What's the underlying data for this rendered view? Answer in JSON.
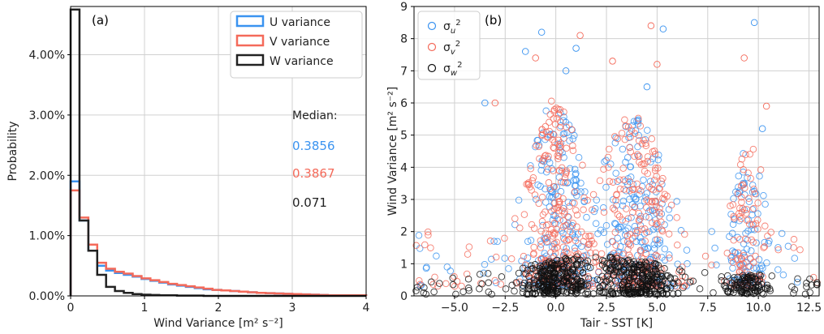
{
  "chart_data": [
    {
      "type": "step-histogram",
      "panel_label": "(a)",
      "xlabel": "Wind Variance [m² s⁻²]",
      "ylabel": "Probability",
      "xlim": [
        0,
        4
      ],
      "ylim": [
        0,
        4.8
      ],
      "x_ticks": [
        "0",
        "1",
        "2",
        "3",
        "4"
      ],
      "y_ticks": [
        "0.00%",
        "1.00%",
        "2.00%",
        "3.00%",
        "4.00%"
      ],
      "grid": true,
      "legend_position": "top-right",
      "bin_edges": [
        0,
        0.12,
        0.24,
        0.36,
        0.48,
        0.6,
        0.72,
        0.84,
        0.96,
        1.08,
        1.2,
        1.32,
        1.44,
        1.56,
        1.68,
        1.8,
        1.92,
        2.04,
        2.16,
        2.28,
        2.4,
        2.52,
        2.64,
        2.76,
        2.88,
        3.0,
        3.12,
        3.24,
        3.36,
        3.48,
        3.6,
        4.0
      ],
      "series": [
        {
          "name": "U variance",
          "color": "#3a93f0",
          "values": [
            1.9,
            1.25,
            0.75,
            0.5,
            0.42,
            0.38,
            0.35,
            0.32,
            0.28,
            0.25,
            0.22,
            0.19,
            0.17,
            0.15,
            0.13,
            0.11,
            0.1,
            0.09,
            0.08,
            0.07,
            0.06,
            0.05,
            0.045,
            0.04,
            0.035,
            0.03,
            0.025,
            0.02,
            0.015,
            0.01,
            0.01
          ]
        },
        {
          "name": "V variance",
          "color": "#f46a5a",
          "values": [
            1.75,
            1.3,
            0.85,
            0.55,
            0.45,
            0.4,
            0.37,
            0.33,
            0.29,
            0.26,
            0.23,
            0.2,
            0.18,
            0.16,
            0.14,
            0.12,
            0.1,
            0.09,
            0.08,
            0.07,
            0.06,
            0.05,
            0.045,
            0.04,
            0.035,
            0.03,
            0.025,
            0.02,
            0.015,
            0.01,
            0.01
          ]
        },
        {
          "name": "W variance",
          "color": "#222222",
          "values": [
            4.75,
            1.25,
            0.75,
            0.35,
            0.15,
            0.08,
            0.05,
            0.03,
            0.02,
            0.015,
            0.01,
            0.01,
            0.005,
            0.005,
            0.005,
            0,
            0,
            0,
            0,
            0,
            0,
            0,
            0,
            0,
            0,
            0,
            0,
            0,
            0,
            0,
            0
          ]
        }
      ],
      "annotations": [
        {
          "text": "Median:",
          "color": "#222222"
        },
        {
          "text": "0.3856",
          "color": "#3a93f0"
        },
        {
          "text": "0.3867",
          "color": "#f46a5a"
        },
        {
          "text": "0.071",
          "color": "#222222"
        }
      ]
    },
    {
      "type": "scatter",
      "panel_label": "(b)",
      "xlabel": "Tair - SST [K]",
      "ylabel": "Wind Variance [m² s⁻²]",
      "xlim": [
        -7,
        13
      ],
      "ylim": [
        0,
        9
      ],
      "x_ticks": [
        "−5.0",
        "−2.5",
        "0.0",
        "2.5",
        "5.0",
        "7.5",
        "10.0",
        "12.5"
      ],
      "y_ticks": [
        "0",
        "1",
        "2",
        "3",
        "4",
        "5",
        "6",
        "7",
        "8",
        "9"
      ],
      "grid": true,
      "legend_position": "top-left",
      "marker": "open-circle",
      "series": [
        {
          "name": "σu²",
          "sub": "u",
          "color": "#3a93f0",
          "typical_range": [
            0.3,
            6.5
          ],
          "outliers": [
            [
              -3.5,
              6.0
            ],
            [
              -1.5,
              7.6
            ],
            [
              -0.7,
              8.2
            ],
            [
              0.5,
              7.0
            ],
            [
              1.0,
              7.7
            ],
            [
              4.5,
              6.5
            ],
            [
              5.3,
              8.3
            ],
            [
              9.8,
              8.5
            ],
            [
              10.2,
              5.2
            ]
          ]
        },
        {
          "name": "σv²",
          "sub": "v",
          "color": "#f46a5a",
          "typical_range": [
            0.3,
            6.5
          ],
          "outliers": [
            [
              -3.0,
              6.0
            ],
            [
              -1.0,
              7.4
            ],
            [
              1.2,
              8.1
            ],
            [
              2.8,
              7.3
            ],
            [
              4.7,
              8.4
            ],
            [
              5.0,
              7.2
            ],
            [
              9.3,
              7.4
            ],
            [
              10.4,
              5.9
            ]
          ]
        },
        {
          "name": "σw²",
          "sub": "w",
          "color": "#111111",
          "typical_range": [
            0.05,
            1.3
          ],
          "outliers": []
        }
      ]
    }
  ]
}
